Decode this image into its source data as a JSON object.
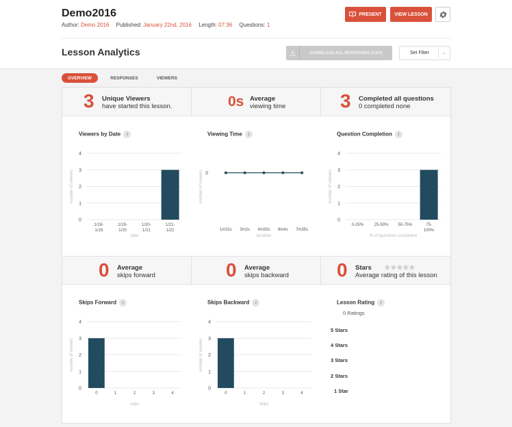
{
  "lesson": {
    "title": "Demo2016",
    "author_label": "Author:",
    "author": "Demo 2016",
    "published_label": "Published:",
    "published": "January 22nd, 2016",
    "length_label": "Length:",
    "length": "07:36",
    "questions_label": "Questions:",
    "questions": "1"
  },
  "header": {
    "present_label": "PRESENT",
    "view_label": "VIEW LESSON",
    "page_title": "Lesson Analytics",
    "csv_label": "DOWNLOAD ALL RESPONSES (CSV)",
    "filter_label": "Set Filter"
  },
  "tabs": [
    {
      "label": "OVERVIEW",
      "active": true
    },
    {
      "label": "RESPONSES",
      "active": false
    },
    {
      "label": "VIEWERS",
      "active": false
    }
  ],
  "stats_top": [
    {
      "value": "3",
      "line1": "Unique Viewers",
      "line2": "have started this lesson."
    },
    {
      "value": "0s",
      "line1": "Average",
      "line2": "viewing time"
    },
    {
      "value": "3",
      "line1": "Completed all questions",
      "line2": "0 completed none"
    }
  ],
  "stats_bottom": [
    {
      "value": "0",
      "line1": "Average",
      "line2": "skips forward"
    },
    {
      "value": "0",
      "line1": "Average",
      "line2": "skips backward"
    },
    {
      "value": "0",
      "line1": "Stars",
      "line2": "Average rating of this lesson",
      "stars": 0
    }
  ],
  "colors": {
    "accent": "#d9513a",
    "bar": "#234b5f",
    "grid": "#e9e9e9"
  },
  "chart_data": [
    {
      "type": "bar",
      "title": "Viewers by Date",
      "categories": [
        "1/18-1/19",
        "1/19-1/20",
        "1/20-1/21",
        "1/21-1/22"
      ],
      "values": [
        0,
        0,
        0,
        3
      ],
      "xlabel": "date",
      "ylabel": "number of viewers",
      "ylim": [
        0,
        4
      ],
      "yticks": [
        0,
        1,
        2,
        3,
        4
      ]
    },
    {
      "type": "line",
      "title": "Viewing Time",
      "categories": [
        "1m31s",
        "3m2s",
        "4m33s",
        "6m4s",
        "7m35s"
      ],
      "values": [
        0,
        0,
        0,
        0,
        0
      ],
      "xlabel": "duration",
      "ylabel": "number of viewers",
      "yticks": [
        0
      ]
    },
    {
      "type": "bar",
      "title": "Question Completion",
      "categories": [
        "0-25%",
        "25-50%",
        "50-75%",
        "75-100%"
      ],
      "values": [
        0,
        0,
        0,
        3
      ],
      "xlabel": "% of questions completed",
      "ylabel": "number of viewers",
      "ylim": [
        0,
        4
      ],
      "yticks": [
        0,
        1,
        2,
        3,
        4
      ]
    },
    {
      "type": "bar",
      "title": "Skips Forward",
      "categories": [
        "0",
        "1",
        "2",
        "3",
        "4"
      ],
      "values": [
        3,
        0,
        0,
        0,
        0
      ],
      "xlabel": "skips",
      "ylabel": "number of viewers",
      "ylim": [
        0,
        4
      ],
      "yticks": [
        0,
        1,
        2,
        3,
        4
      ]
    },
    {
      "type": "bar",
      "title": "Skips Backward",
      "categories": [
        "0",
        "1",
        "2",
        "3",
        "4"
      ],
      "values": [
        3,
        0,
        0,
        0,
        0
      ],
      "xlabel": "skips",
      "ylabel": "number of viewers",
      "ylim": [
        0,
        4
      ],
      "yticks": [
        0,
        1,
        2,
        3,
        4
      ]
    }
  ],
  "lesson_rating": {
    "title": "Lesson Rating",
    "ratings_count": "0 Ratings",
    "items": [
      "5 Stars",
      "4 Stars",
      "3 Stars",
      "2 Stars",
      "1 Star"
    ]
  },
  "icons": {
    "info": "i",
    "star": "★",
    "chevron": "⌄"
  }
}
